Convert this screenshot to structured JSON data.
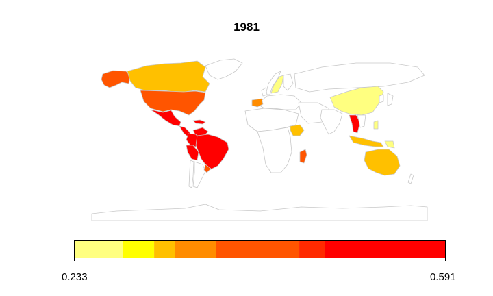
{
  "title": "1981",
  "legend": {
    "min_label": "0.233",
    "max_label": "0.591",
    "range": [
      0.233,
      0.591
    ],
    "bins": [
      {
        "from": 0.233,
        "to": 0.28,
        "color": "#ffff80"
      },
      {
        "from": 0.28,
        "to": 0.31,
        "color": "#ffff00"
      },
      {
        "from": 0.31,
        "to": 0.33,
        "color": "#ffc000"
      },
      {
        "from": 0.33,
        "to": 0.37,
        "color": "#ff8c00"
      },
      {
        "from": 0.37,
        "to": 0.45,
        "color": "#ff5500"
      },
      {
        "from": 0.45,
        "to": 0.475,
        "color": "#ff2a00"
      },
      {
        "from": 0.475,
        "to": 0.591,
        "color": "#ff0000"
      }
    ]
  },
  "map": {
    "no_data_color": "#ffffff",
    "border_color": "#c8c8c8",
    "regions": [
      {
        "name": "alaska",
        "color": "#ff5500"
      },
      {
        "name": "canada",
        "color": "#ffc000"
      },
      {
        "name": "usa",
        "color": "#ff5500"
      },
      {
        "name": "mexico",
        "color": "#ff0000"
      },
      {
        "name": "central-america",
        "color": "#ff0000"
      },
      {
        "name": "caribbean",
        "color": "#ff0000"
      },
      {
        "name": "venezuela",
        "color": "#ff0000"
      },
      {
        "name": "colombia",
        "color": "#ff0000"
      },
      {
        "name": "brazil",
        "color": "#ff0000"
      },
      {
        "name": "peru",
        "color": "#ff0000"
      },
      {
        "name": "uruguay",
        "color": "#ff5500"
      },
      {
        "name": "chile",
        "color": "#ffffff"
      },
      {
        "name": "argentina",
        "color": "#ffffff"
      },
      {
        "name": "sweden",
        "color": "#ffff80"
      },
      {
        "name": "finland",
        "color": "#ffffff"
      },
      {
        "name": "norway",
        "color": "#ffffff"
      },
      {
        "name": "spain",
        "color": "#ff8c00"
      },
      {
        "name": "ethiopia",
        "color": "#ffc000"
      },
      {
        "name": "madagascar",
        "color": "#ff5500"
      },
      {
        "name": "china",
        "color": "#ffff80"
      },
      {
        "name": "india",
        "color": "#ffffff"
      },
      {
        "name": "thailand",
        "color": "#ff0000"
      },
      {
        "name": "indonesia",
        "color": "#ffc000"
      },
      {
        "name": "philippines",
        "color": "#ffff80"
      },
      {
        "name": "papua-new-guinea",
        "color": "#ffff80"
      },
      {
        "name": "australia",
        "color": "#ffc000"
      },
      {
        "name": "antarctica",
        "color": "#ffffff"
      }
    ]
  }
}
